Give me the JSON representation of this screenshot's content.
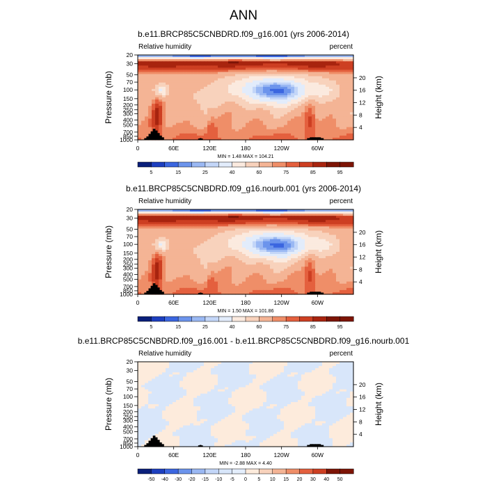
{
  "main_title": "ANN",
  "colors": {
    "abs_palette": [
      "#0a1f7a",
      "#1d3fbf",
      "#3b66e0",
      "#6c94ec",
      "#9ab8f3",
      "#c3d6f8",
      "#e2ecfb",
      "#fbeadf",
      "#f8d2bc",
      "#f4b495",
      "#ef8e68",
      "#e4603e",
      "#cd3f22",
      "#a8240f",
      "#7d1406"
    ],
    "diff_palette": [
      "#0a1f7a",
      "#1d3fbf",
      "#3b66e0",
      "#6c94ec",
      "#9ab8f3",
      "#c3d6f8",
      "#d8e6fa",
      "#e4eefc",
      "#fdebdc",
      "#f8d2bc",
      "#f4b495",
      "#ef8e68",
      "#e4603e",
      "#cd3f22",
      "#7d1406"
    ],
    "topography": "#000000"
  },
  "chart_data": [
    {
      "type": "heatmap",
      "title": "b.e11.BRCP85C5CNBDRD.f09_g16.001 (yrs 2006-2014)",
      "left_label": "Relative humidity",
      "right_label": "percent",
      "ylabel": "Pressure (mb)",
      "y2label": "Height (km)",
      "y_ticks": [
        "20",
        "30",
        "50",
        "70",
        "100",
        "150",
        "200",
        "250",
        "300",
        "400",
        "500",
        "700",
        "850",
        "1000"
      ],
      "y_tick_values": [
        20,
        30,
        50,
        70,
        100,
        150,
        200,
        250,
        300,
        400,
        500,
        700,
        850,
        1000
      ],
      "y_log": true,
      "ylim": [
        1000,
        20
      ],
      "y2_ticks": [
        "20",
        "16",
        "12",
        "8",
        "4"
      ],
      "y2_tick_values": [
        20,
        16,
        12,
        8,
        4
      ],
      "x_ticks": [
        "0",
        "60E",
        "120E",
        "180",
        "120W",
        "60W"
      ],
      "x_tick_values": [
        0,
        60,
        120,
        180,
        240,
        300
      ],
      "xlim": [
        0,
        360
      ],
      "stats": "MIN =   1.48  MAX = 104.21",
      "min": 1.48,
      "max": 104.21,
      "colorbar_labels": [
        "5",
        "15",
        "25",
        "40",
        "60",
        "75",
        "85",
        "95"
      ],
      "colorbar_levels": [
        5,
        10,
        15,
        20,
        25,
        30,
        40,
        50,
        60,
        70,
        75,
        80,
        85,
        90,
        95
      ]
    },
    {
      "type": "heatmap",
      "title": "b.e11.BRCP85C5CNBDRD.f09_g16.nourb.001 (yrs 2006-2014)",
      "left_label": "Relative humidity",
      "right_label": "percent",
      "ylabel": "Pressure (mb)",
      "y2label": "Height (km)",
      "y_ticks": [
        "20",
        "30",
        "50",
        "70",
        "100",
        "150",
        "200",
        "250",
        "300",
        "400",
        "500",
        "700",
        "850",
        "1000"
      ],
      "y_tick_values": [
        20,
        30,
        50,
        70,
        100,
        150,
        200,
        250,
        300,
        400,
        500,
        700,
        850,
        1000
      ],
      "y_log": true,
      "ylim": [
        1000,
        20
      ],
      "y2_ticks": [
        "20",
        "16",
        "12",
        "8",
        "4"
      ],
      "y2_tick_values": [
        20,
        16,
        12,
        8,
        4
      ],
      "x_ticks": [
        "0",
        "60E",
        "120E",
        "180",
        "120W",
        "60W"
      ],
      "x_tick_values": [
        0,
        60,
        120,
        180,
        240,
        300
      ],
      "xlim": [
        0,
        360
      ],
      "stats": "MIN =   1.50  MAX = 101.86",
      "min": 1.5,
      "max": 101.86,
      "colorbar_labels": [
        "5",
        "15",
        "25",
        "40",
        "60",
        "75",
        "85",
        "95"
      ],
      "colorbar_levels": [
        5,
        10,
        15,
        20,
        25,
        30,
        40,
        50,
        60,
        70,
        75,
        80,
        85,
        90,
        95
      ]
    },
    {
      "type": "heatmap",
      "title": "b.e11.BRCP85C5CNBDRD.f09_g16.001 - b.e11.BRCP85C5CNBDRD.f09_g16.nourb.001",
      "left_label": "Relative humidity",
      "right_label": "percent",
      "ylabel": "Pressure (mb)",
      "y2label": "Height (km)",
      "y_ticks": [
        "20",
        "30",
        "50",
        "70",
        "100",
        "150",
        "200",
        "250",
        "300",
        "400",
        "500",
        "700",
        "850",
        "1000"
      ],
      "y_tick_values": [
        20,
        30,
        50,
        70,
        100,
        150,
        200,
        250,
        300,
        400,
        500,
        700,
        850,
        1000
      ],
      "y_log": true,
      "ylim": [
        1000,
        20
      ],
      "y2_ticks": [
        "20",
        "16",
        "12",
        "8",
        "4"
      ],
      "y2_tick_values": [
        20,
        16,
        12,
        8,
        4
      ],
      "x_ticks": [
        "0",
        "60E",
        "120E",
        "180",
        "120W",
        "60W"
      ],
      "x_tick_values": [
        0,
        60,
        120,
        180,
        240,
        300
      ],
      "xlim": [
        0,
        360
      ],
      "stats": "MIN =  -2.88  MAX =   4.40",
      "min": -2.88,
      "max": 4.4,
      "colorbar_labels": [
        "-50",
        "-40",
        "-30",
        "-20",
        "-15",
        "-10",
        "-5",
        "0",
        "5",
        "10",
        "15",
        "20",
        "30",
        "40",
        "50"
      ],
      "colorbar_levels": [
        -50,
        -40,
        -30,
        -20,
        -15,
        -10,
        -5,
        0,
        5,
        10,
        15,
        20,
        30,
        40,
        50
      ]
    }
  ]
}
